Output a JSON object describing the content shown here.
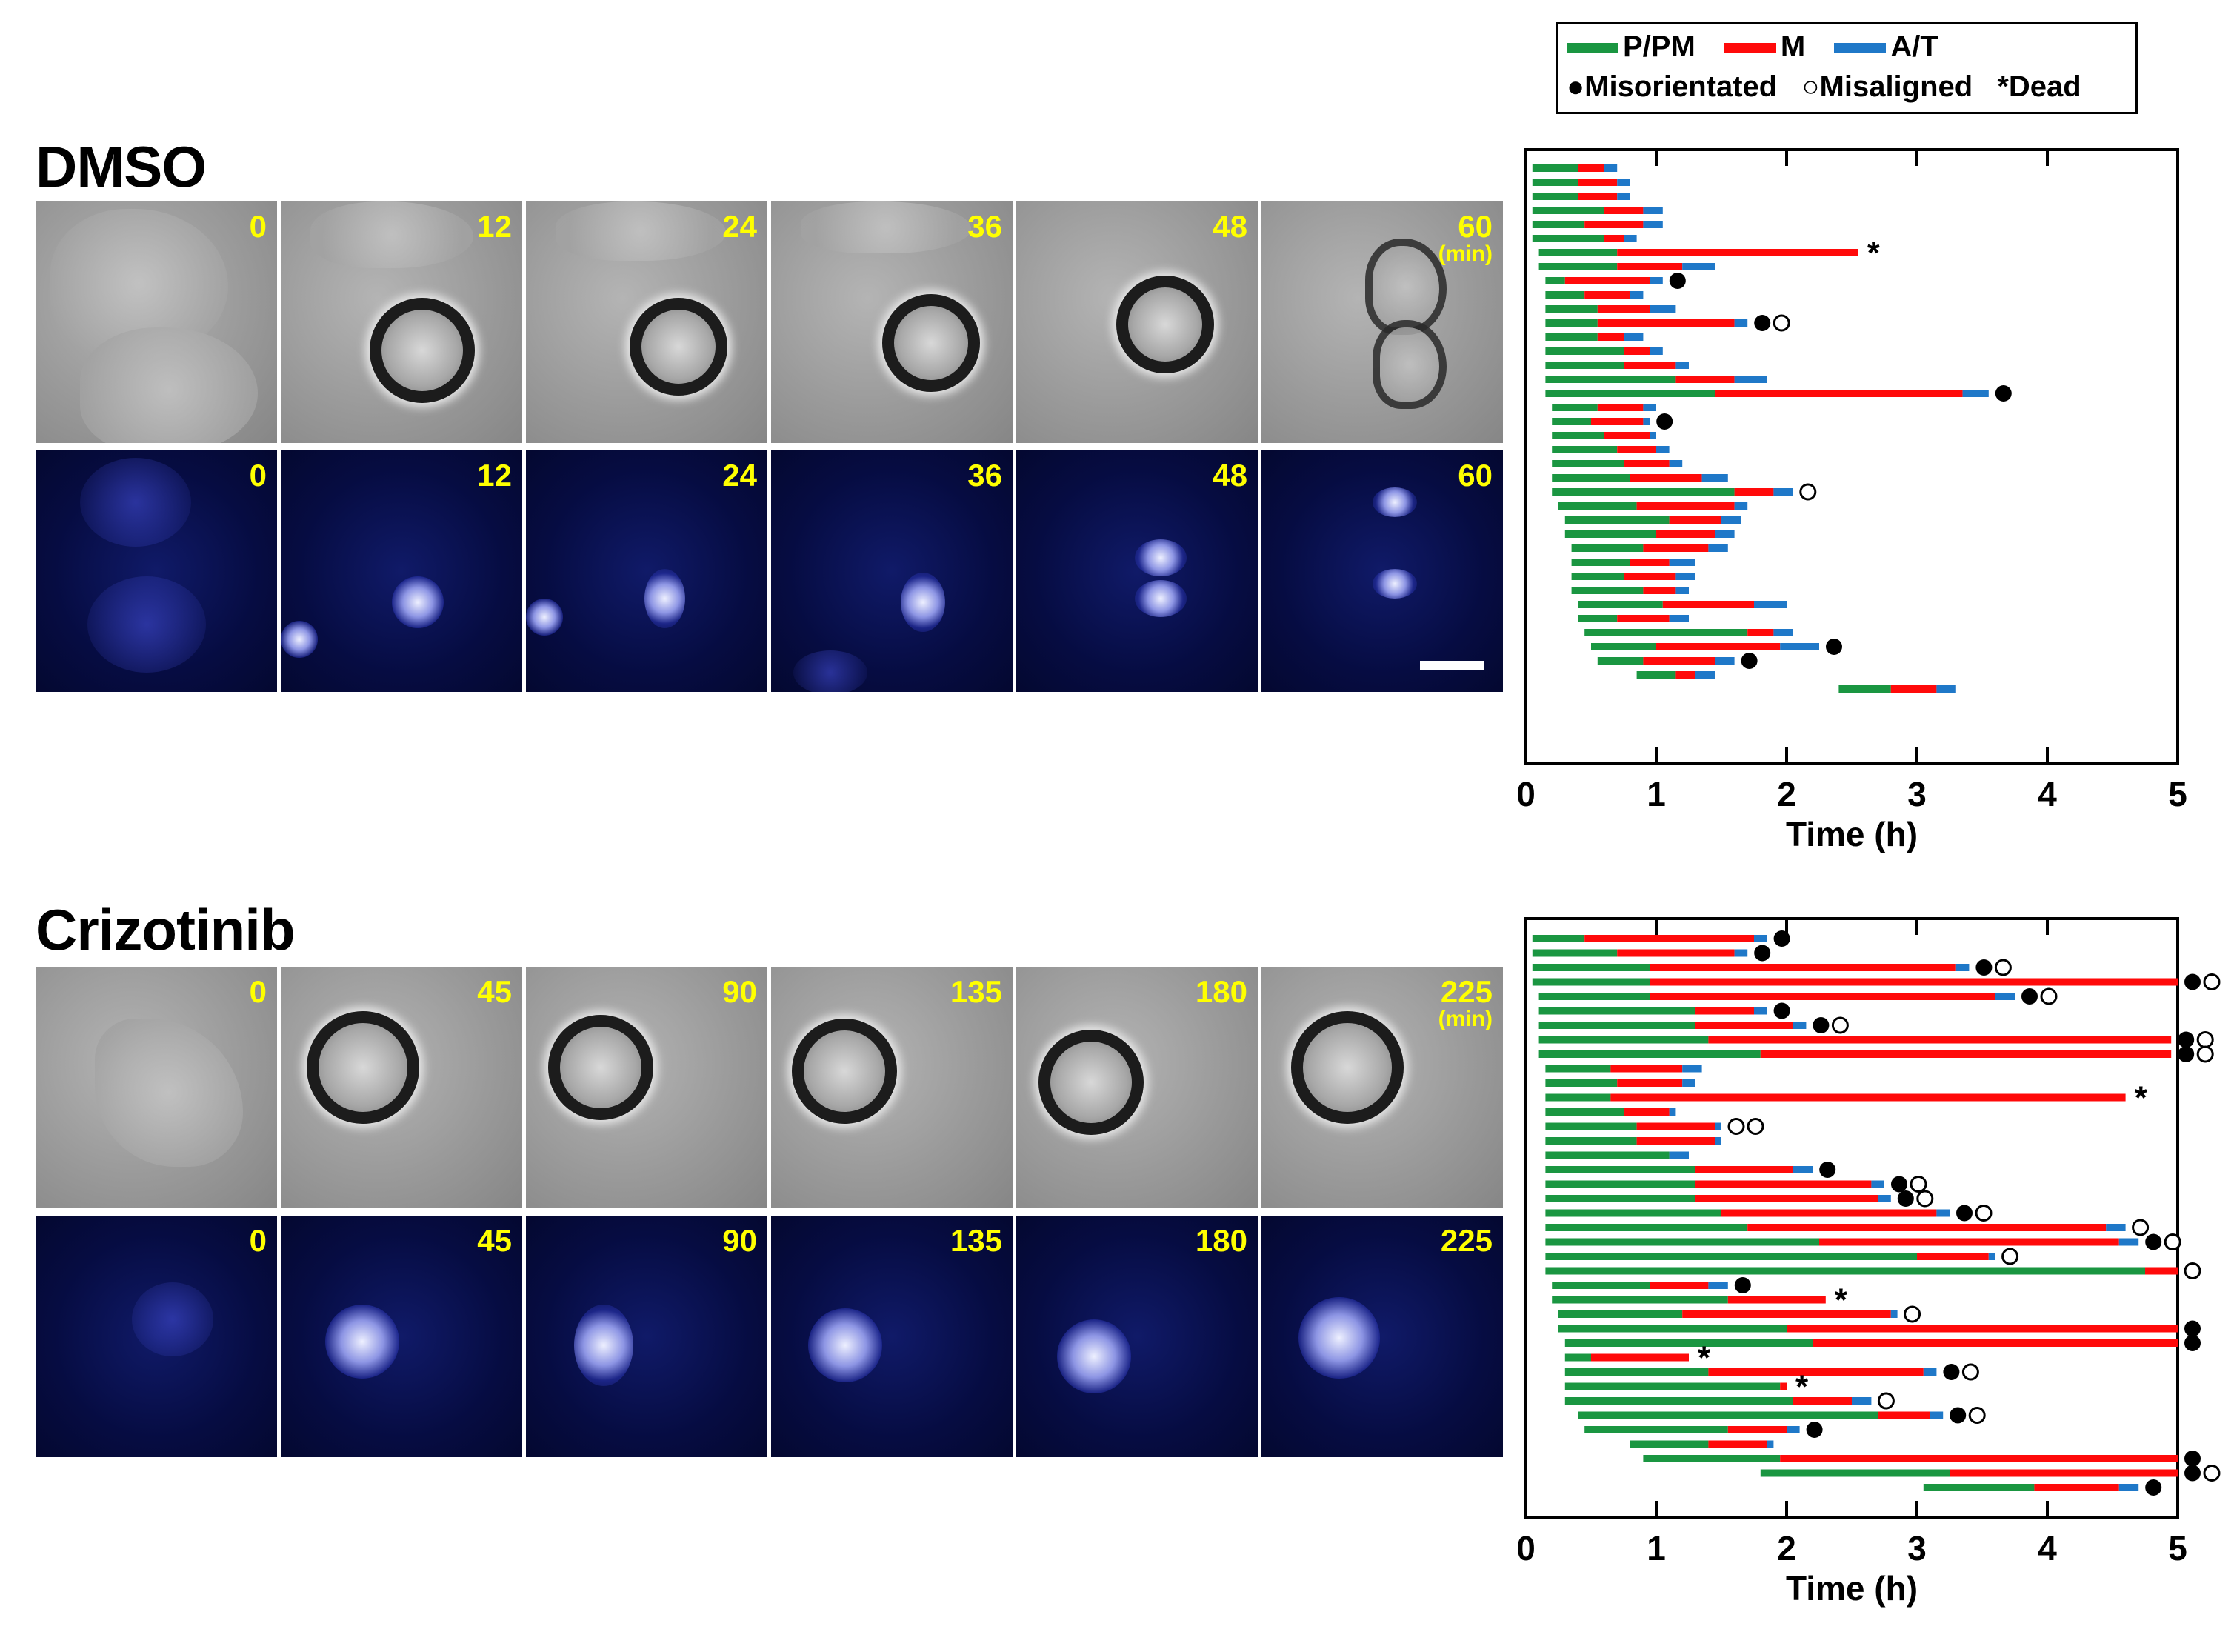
{
  "legend": {
    "phases": [
      {
        "label": "P/PM",
        "color": "#1a9641"
      },
      {
        "label": "M",
        "color": "#ff0a0a"
      },
      {
        "label": "A/T",
        "color": "#1f78c8"
      }
    ],
    "markers": [
      {
        "symbol": "●",
        "label": "Misorientated"
      },
      {
        "symbol": "○",
        "label": "Misaligned"
      },
      {
        "symbol": "*",
        "label": "Dead"
      }
    ]
  },
  "panels": [
    {
      "title": "DMSO",
      "brightfield_labels": [
        "0",
        "12",
        "24",
        "36",
        "48",
        "60"
      ],
      "fluorescence_labels": [
        "0",
        "12",
        "24",
        "36",
        "48",
        "60"
      ],
      "unit_label": "(min)"
    },
    {
      "title": "Crizotinib",
      "brightfield_labels": [
        "0",
        "45",
        "90",
        "135",
        "180",
        "225"
      ],
      "fluorescence_labels": [
        "0",
        "45",
        "90",
        "135",
        "180",
        "225"
      ],
      "unit_label": "(min)"
    }
  ],
  "chart_data": [
    {
      "type": "bar",
      "orientation": "horizontal stacked (timeline)",
      "xlabel": "Time (h)",
      "xlim": [
        0,
        5
      ],
      "xticks": [
        "0",
        "1",
        "2",
        "3",
        "4",
        "5"
      ],
      "grid": false,
      "series_order": [
        "P/PM",
        "M",
        "A/T"
      ],
      "cells": [
        {
          "start": 0.05,
          "pm": 0.35,
          "m": 0.2,
          "at": 0.1,
          "marks": []
        },
        {
          "start": 0.05,
          "pm": 0.35,
          "m": 0.3,
          "at": 0.1,
          "marks": []
        },
        {
          "start": 0.05,
          "pm": 0.35,
          "m": 0.3,
          "at": 0.1,
          "marks": []
        },
        {
          "start": 0.05,
          "pm": 0.55,
          "m": 0.3,
          "at": 0.15,
          "marks": []
        },
        {
          "start": 0.05,
          "pm": 0.4,
          "m": 0.45,
          "at": 0.15,
          "marks": []
        },
        {
          "start": 0.05,
          "pm": 0.55,
          "m": 0.15,
          "at": 0.1,
          "marks": []
        },
        {
          "start": 0.1,
          "pm": 0.6,
          "m": 1.85,
          "at": 0.0,
          "marks": [
            "*"
          ]
        },
        {
          "start": 0.1,
          "pm": 0.6,
          "m": 0.5,
          "at": 0.25,
          "marks": []
        },
        {
          "start": 0.15,
          "pm": 0.15,
          "m": 0.65,
          "at": 0.1,
          "marks": [
            "●"
          ]
        },
        {
          "start": 0.15,
          "pm": 0.3,
          "m": 0.35,
          "at": 0.1,
          "marks": []
        },
        {
          "start": 0.15,
          "pm": 0.4,
          "m": 0.4,
          "at": 0.2,
          "marks": []
        },
        {
          "start": 0.15,
          "pm": 0.4,
          "m": 1.05,
          "at": 0.1,
          "marks": [
            "●",
            "○"
          ]
        },
        {
          "start": 0.15,
          "pm": 0.4,
          "m": 0.2,
          "at": 0.15,
          "marks": []
        },
        {
          "start": 0.15,
          "pm": 0.6,
          "m": 0.2,
          "at": 0.1,
          "marks": []
        },
        {
          "start": 0.15,
          "pm": 0.6,
          "m": 0.4,
          "at": 0.1,
          "marks": []
        },
        {
          "start": 0.15,
          "pm": 1.0,
          "m": 0.45,
          "at": 0.25,
          "marks": []
        },
        {
          "start": 0.15,
          "pm": 1.3,
          "m": 1.9,
          "at": 0.2,
          "marks": [
            "●"
          ]
        },
        {
          "start": 0.2,
          "pm": 0.35,
          "m": 0.35,
          "at": 0.1,
          "marks": []
        },
        {
          "start": 0.2,
          "pm": 0.3,
          "m": 0.4,
          "at": 0.05,
          "marks": [
            "●"
          ]
        },
        {
          "start": 0.2,
          "pm": 0.4,
          "m": 0.35,
          "at": 0.05,
          "marks": []
        },
        {
          "start": 0.2,
          "pm": 0.5,
          "m": 0.3,
          "at": 0.1,
          "marks": []
        },
        {
          "start": 0.2,
          "pm": 0.55,
          "m": 0.35,
          "at": 0.1,
          "marks": []
        },
        {
          "start": 0.2,
          "pm": 0.6,
          "m": 0.55,
          "at": 0.2,
          "marks": []
        },
        {
          "start": 0.2,
          "pm": 1.4,
          "m": 0.3,
          "at": 0.15,
          "marks": [
            "○"
          ]
        },
        {
          "start": 0.25,
          "pm": 0.6,
          "m": 0.75,
          "at": 0.1,
          "marks": []
        },
        {
          "start": 0.3,
          "pm": 0.8,
          "m": 0.4,
          "at": 0.15,
          "marks": []
        },
        {
          "start": 0.3,
          "pm": 0.7,
          "m": 0.45,
          "at": 0.15,
          "marks": []
        },
        {
          "start": 0.35,
          "pm": 0.55,
          "m": 0.5,
          "at": 0.15,
          "marks": []
        },
        {
          "start": 0.35,
          "pm": 0.45,
          "m": 0.3,
          "at": 0.2,
          "marks": []
        },
        {
          "start": 0.35,
          "pm": 0.4,
          "m": 0.4,
          "at": 0.15,
          "marks": []
        },
        {
          "start": 0.35,
          "pm": 0.55,
          "m": 0.25,
          "at": 0.1,
          "marks": []
        },
        {
          "start": 0.4,
          "pm": 0.65,
          "m": 0.7,
          "at": 0.25,
          "marks": []
        },
        {
          "start": 0.4,
          "pm": 0.3,
          "m": 0.4,
          "at": 0.15,
          "marks": []
        },
        {
          "start": 0.45,
          "pm": 1.25,
          "m": 0.2,
          "at": 0.15,
          "marks": []
        },
        {
          "start": 0.5,
          "pm": 0.5,
          "m": 0.95,
          "at": 0.3,
          "marks": [
            "●"
          ]
        },
        {
          "start": 0.55,
          "pm": 0.35,
          "m": 0.55,
          "at": 0.15,
          "marks": [
            "●"
          ]
        },
        {
          "start": 0.85,
          "pm": 0.3,
          "m": 0.15,
          "at": 0.15,
          "marks": []
        },
        {
          "start": 2.4,
          "pm": 0.4,
          "m": 0.35,
          "at": 0.15,
          "marks": []
        }
      ]
    },
    {
      "type": "bar",
      "orientation": "horizontal stacked (timeline)",
      "xlabel": "Time (h)",
      "xlim": [
        0,
        5
      ],
      "xticks": [
        "0",
        "1",
        "2",
        "3",
        "4",
        "5"
      ],
      "grid": false,
      "series_order": [
        "P/PM",
        "M",
        "A/T"
      ],
      "cells": [
        {
          "start": 0.05,
          "pm": 0.4,
          "m": 1.3,
          "at": 0.1,
          "marks": [
            "●"
          ]
        },
        {
          "start": 0.05,
          "pm": 0.65,
          "m": 0.9,
          "at": 0.1,
          "marks": [
            "●"
          ]
        },
        {
          "start": 0.05,
          "pm": 0.9,
          "m": 2.35,
          "at": 0.1,
          "marks": [
            "●",
            "○"
          ]
        },
        {
          "start": 0.05,
          "pm": 0.9,
          "m": 4.05,
          "at": 0.0,
          "marks": [
            "●",
            "○"
          ]
        },
        {
          "start": 0.1,
          "pm": 0.85,
          "m": 2.65,
          "at": 0.15,
          "marks": [
            "●",
            "○"
          ]
        },
        {
          "start": 0.1,
          "pm": 1.2,
          "m": 0.45,
          "at": 0.1,
          "marks": [
            "●"
          ]
        },
        {
          "start": 0.1,
          "pm": 1.2,
          "m": 0.75,
          "at": 0.1,
          "marks": [
            "●",
            "○"
          ]
        },
        {
          "start": 0.1,
          "pm": 1.3,
          "m": 3.55,
          "at": 0.0,
          "marks": [
            "●",
            "○"
          ]
        },
        {
          "start": 0.1,
          "pm": 1.7,
          "m": 3.15,
          "at": 0.0,
          "marks": [
            "●",
            "○"
          ]
        },
        {
          "start": 0.15,
          "pm": 0.5,
          "m": 0.55,
          "at": 0.15,
          "marks": []
        },
        {
          "start": 0.15,
          "pm": 0.55,
          "m": 0.5,
          "at": 0.1,
          "marks": []
        },
        {
          "start": 0.15,
          "pm": 0.5,
          "m": 3.95,
          "at": 0.0,
          "marks": [
            "*"
          ]
        },
        {
          "start": 0.15,
          "pm": 0.6,
          "m": 0.35,
          "at": 0.05,
          "marks": []
        },
        {
          "start": 0.15,
          "pm": 0.7,
          "m": 0.6,
          "at": 0.05,
          "marks": [
            "○",
            "○"
          ]
        },
        {
          "start": 0.15,
          "pm": 0.7,
          "m": 0.6,
          "at": 0.05,
          "marks": []
        },
        {
          "start": 0.15,
          "pm": 0.95,
          "m": 0.0,
          "at": 0.15,
          "marks": []
        },
        {
          "start": 0.15,
          "pm": 1.15,
          "m": 0.75,
          "at": 0.15,
          "marks": [
            "●"
          ]
        },
        {
          "start": 0.15,
          "pm": 1.15,
          "m": 1.35,
          "at": 0.1,
          "marks": [
            "●",
            "○"
          ]
        },
        {
          "start": 0.15,
          "pm": 1.15,
          "m": 1.4,
          "at": 0.1,
          "marks": [
            "●",
            "○"
          ]
        },
        {
          "start": 0.15,
          "pm": 1.35,
          "m": 1.65,
          "at": 0.1,
          "marks": [
            "●",
            "○"
          ]
        },
        {
          "start": 0.15,
          "pm": 1.55,
          "m": 2.75,
          "at": 0.15,
          "marks": [
            "○"
          ]
        },
        {
          "start": 0.15,
          "pm": 2.1,
          "m": 2.3,
          "at": 0.15,
          "marks": [
            "●",
            "○"
          ]
        },
        {
          "start": 0.15,
          "pm": 2.85,
          "m": 0.55,
          "at": 0.05,
          "marks": [
            "○"
          ]
        },
        {
          "start": 0.15,
          "pm": 4.6,
          "m": 0.25,
          "at": 0.0,
          "marks": [
            "○"
          ]
        },
        {
          "start": 0.2,
          "pm": 0.75,
          "m": 0.45,
          "at": 0.15,
          "marks": [
            "●"
          ]
        },
        {
          "start": 0.2,
          "pm": 1.35,
          "m": 0.75,
          "at": 0.0,
          "marks": [
            "*"
          ]
        },
        {
          "start": 0.25,
          "pm": 0.95,
          "m": 1.6,
          "at": 0.05,
          "marks": [
            "○"
          ]
        },
        {
          "start": 0.25,
          "pm": 1.75,
          "m": 3.0,
          "at": 0.0,
          "marks": [
            "●"
          ]
        },
        {
          "start": 0.3,
          "pm": 1.9,
          "m": 2.8,
          "at": 0.0,
          "marks": [
            "●"
          ]
        },
        {
          "start": 0.3,
          "pm": 0.2,
          "m": 0.75,
          "at": 0.0,
          "marks": [
            "*"
          ]
        },
        {
          "start": 0.3,
          "pm": 1.1,
          "m": 1.65,
          "at": 0.1,
          "marks": [
            "●",
            "○"
          ]
        },
        {
          "start": 0.3,
          "pm": 1.65,
          "m": 0.05,
          "at": 0.0,
          "marks": [
            "*"
          ]
        },
        {
          "start": 0.3,
          "pm": 1.75,
          "m": 0.45,
          "at": 0.15,
          "marks": [
            "○"
          ]
        },
        {
          "start": 0.4,
          "pm": 2.3,
          "m": 0.4,
          "at": 0.1,
          "marks": [
            "●",
            "○"
          ]
        },
        {
          "start": 0.45,
          "pm": 1.1,
          "m": 0.45,
          "at": 0.1,
          "marks": [
            "●"
          ]
        },
        {
          "start": 0.8,
          "pm": 0.6,
          "m": 0.45,
          "at": 0.05,
          "marks": []
        },
        {
          "start": 0.9,
          "pm": 1.05,
          "m": 3.05,
          "at": 0.0,
          "marks": [
            "●"
          ]
        },
        {
          "start": 1.8,
          "pm": 1.45,
          "m": 1.75,
          "at": 0.0,
          "marks": [
            "●",
            "○"
          ]
        },
        {
          "start": 3.05,
          "pm": 0.85,
          "m": 0.65,
          "at": 0.15,
          "marks": [
            "●"
          ]
        }
      ]
    }
  ]
}
